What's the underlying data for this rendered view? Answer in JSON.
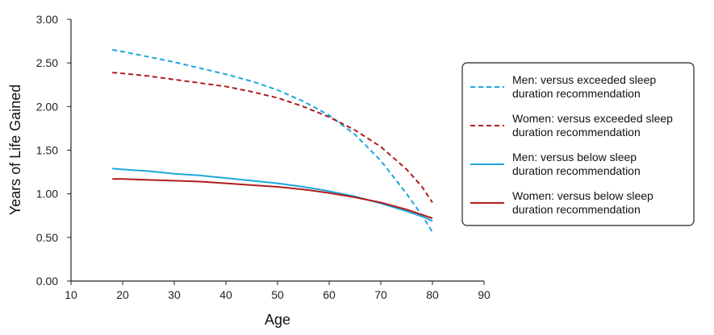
{
  "chart_data": {
    "type": "line",
    "xlabel": "Age",
    "ylabel": "Years of Life Gained",
    "xlim": [
      10,
      90
    ],
    "ylim": [
      0.0,
      3.0
    ],
    "xticks": [
      "10",
      "20",
      "30",
      "40",
      "50",
      "60",
      "70",
      "80",
      "90"
    ],
    "yticks": [
      "0.00",
      "0.50",
      "1.00",
      "1.50",
      "2.00",
      "2.50",
      "3.00"
    ],
    "grid": false,
    "legend_position": "right",
    "series": [
      {
        "name": "Men: versus exceeded sleep duration recommendation",
        "legend_lines": [
          "Men: versus exceeded sleep",
          "duration recommendation"
        ],
        "color": "#1ca6df",
        "dash": "dashed",
        "x": [
          18,
          20,
          25,
          30,
          35,
          40,
          45,
          50,
          55,
          60,
          65,
          70,
          75,
          78,
          80
        ],
        "y": [
          2.65,
          2.63,
          2.57,
          2.51,
          2.44,
          2.37,
          2.29,
          2.19,
          2.06,
          1.9,
          1.68,
          1.38,
          1.0,
          0.75,
          0.56
        ]
      },
      {
        "name": "Women: versus exceeded sleep duration recommendation",
        "legend_lines": [
          "Women: versus exceeded sleep",
          "duration recommendation"
        ],
        "color": "#b01c1c",
        "dash": "dashed",
        "x": [
          18,
          20,
          25,
          30,
          35,
          40,
          45,
          50,
          55,
          60,
          65,
          70,
          75,
          78,
          80
        ],
        "y": [
          2.39,
          2.38,
          2.35,
          2.31,
          2.27,
          2.23,
          2.17,
          2.1,
          2.0,
          1.88,
          1.73,
          1.54,
          1.28,
          1.08,
          0.9
        ]
      },
      {
        "name": "Men: versus below sleep duration recommendation",
        "legend_lines": [
          "Men: versus below sleep",
          "duration recommendation"
        ],
        "color": "#1ca6df",
        "dash": "solid",
        "x": [
          18,
          20,
          25,
          30,
          35,
          40,
          45,
          50,
          55,
          60,
          65,
          70,
          75,
          78,
          80
        ],
        "y": [
          1.29,
          1.28,
          1.26,
          1.23,
          1.21,
          1.18,
          1.15,
          1.12,
          1.08,
          1.03,
          0.97,
          0.89,
          0.8,
          0.74,
          0.69
        ]
      },
      {
        "name": "Women: versus below sleep duration recommendation",
        "legend_lines": [
          "Women: versus below sleep",
          "duration recommendation"
        ],
        "color": "#b01c1c",
        "dash": "solid",
        "x": [
          18,
          20,
          25,
          30,
          35,
          40,
          45,
          50,
          55,
          60,
          65,
          70,
          75,
          78,
          80
        ],
        "y": [
          1.17,
          1.17,
          1.16,
          1.15,
          1.14,
          1.12,
          1.1,
          1.08,
          1.05,
          1.01,
          0.96,
          0.9,
          0.82,
          0.76,
          0.72
        ]
      }
    ]
  }
}
